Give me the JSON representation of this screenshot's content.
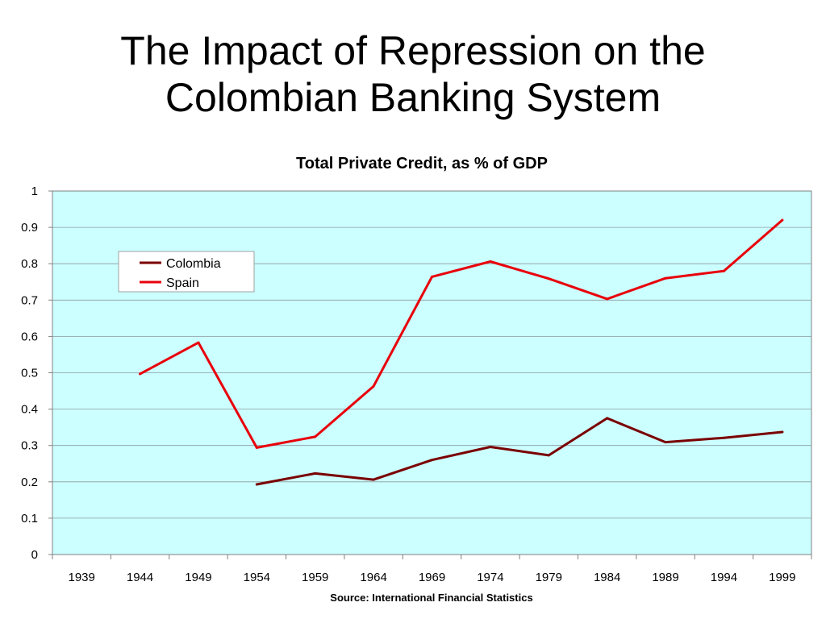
{
  "slide": {
    "title": "The Impact of Repression on the\nColombian Banking System"
  },
  "chart_data": {
    "type": "line",
    "title": "Total Private Credit, as % of GDP",
    "xlabel": "",
    "ylabel": "",
    "categories": [
      "1939",
      "1944",
      "1949",
      "1954",
      "1959",
      "1964",
      "1969",
      "1974",
      "1979",
      "1984",
      "1989",
      "1994",
      "1999"
    ],
    "ylim": [
      0,
      1
    ],
    "yticks": [
      "0",
      "0.1",
      "0.2",
      "0.3",
      "0.4",
      "0.5",
      "0.6",
      "0.7",
      "0.8",
      "0.9",
      "1"
    ],
    "grid": true,
    "legend_position": "top-left",
    "plot_background": "#ccffff",
    "series": [
      {
        "name": "Colombia",
        "color": "#7a0000",
        "values": [
          null,
          null,
          null,
          0.193,
          0.223,
          0.206,
          0.26,
          0.296,
          0.273,
          0.375,
          0.309,
          0.321,
          0.337
        ]
      },
      {
        "name": "Spain",
        "color": "#e8000b",
        "values": [
          null,
          0.497,
          0.583,
          0.294,
          0.324,
          0.463,
          0.764,
          0.806,
          0.759,
          0.703,
          0.76,
          0.78,
          0.92
        ]
      }
    ],
    "source": "Source: International Financial Statistics"
  }
}
